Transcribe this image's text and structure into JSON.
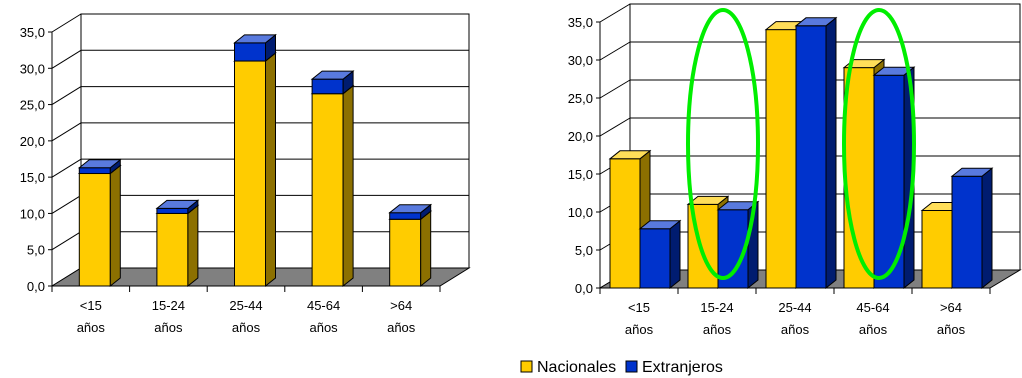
{
  "chart_data": [
    {
      "type": "bar",
      "stacked": true,
      "grid": true,
      "three_d": true,
      "categories": [
        [
          "<15",
          "años"
        ],
        [
          "15-24",
          "años"
        ],
        [
          "25-44",
          "años"
        ],
        [
          "45-64",
          "años"
        ],
        [
          ">64",
          "años"
        ]
      ],
      "series": [
        {
          "name": "Nacionales",
          "color": "#FFCC00",
          "values": [
            15.5,
            10.0,
            31.0,
            26.5,
            9.2
          ]
        },
        {
          "name": "Extranjeros",
          "color": "#0033CC",
          "values": [
            0.8,
            0.7,
            2.5,
            2.0,
            0.9
          ]
        }
      ],
      "ylim": [
        0,
        35
      ],
      "yticks": [
        "0,0",
        "5,0",
        "10,0",
        "15,0",
        "20,0",
        "25,0",
        "30,0",
        "35,0"
      ]
    },
    {
      "type": "bar",
      "grouped": true,
      "grid": true,
      "three_d": true,
      "legend": "bottom",
      "categories": [
        [
          "<15",
          "años"
        ],
        [
          "15-24",
          "años"
        ],
        [
          "25-44",
          "años"
        ],
        [
          "45-64",
          "años"
        ],
        [
          ">64",
          "años"
        ]
      ],
      "series": [
        {
          "name": "Nacionales",
          "color": "#FFCC00",
          "values": [
            17.0,
            11.0,
            34.0,
            29.0,
            10.2
          ]
        },
        {
          "name": "Extranjeros",
          "color": "#0033CC",
          "values": [
            7.8,
            10.3,
            34.5,
            28.0,
            14.7
          ]
        }
      ],
      "ylim": [
        0,
        35
      ],
      "yticks": [
        "0,0",
        "5,0",
        "10,0",
        "15,0",
        "20,0",
        "25,0",
        "30,0",
        "35,0"
      ],
      "highlighted_categories": [
        "15-24",
        "45-64"
      ],
      "highlight_color": "#00EE00"
    }
  ],
  "legend": {
    "items": [
      {
        "label": "Nacionales",
        "color": "#FFCC00"
      },
      {
        "label": "Extranjeros",
        "color": "#0033CC"
      }
    ]
  }
}
